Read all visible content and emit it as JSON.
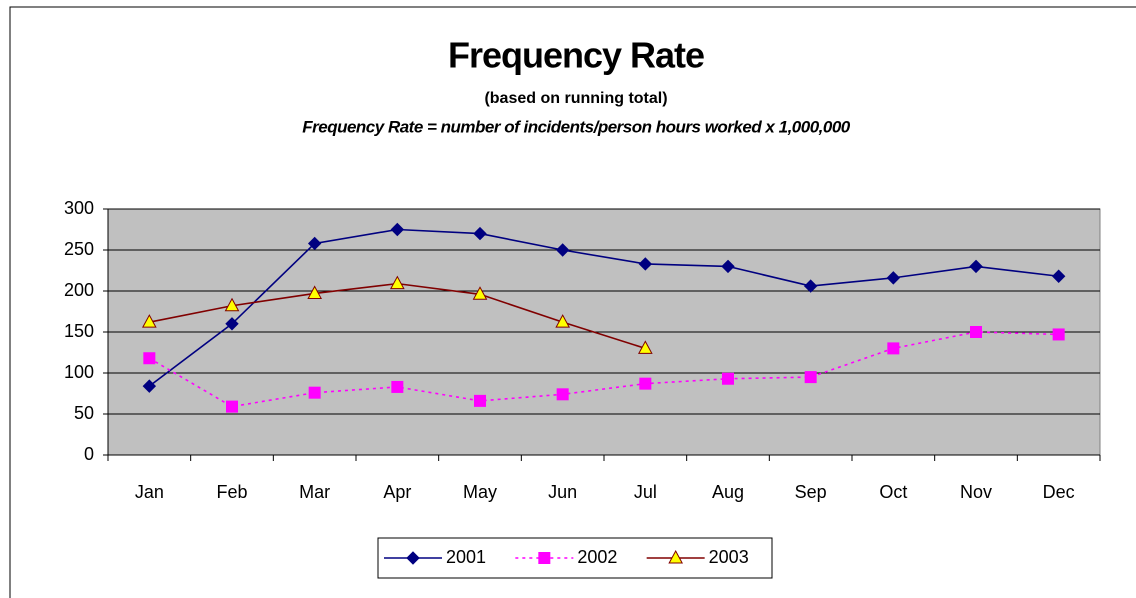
{
  "chart_data": {
    "type": "line",
    "title": "Frequency Rate",
    "subtitle": "(based on running total)",
    "annotation": "Frequency Rate = number of incidents/person hours worked x 1,000,000",
    "categories": [
      "Jan",
      "Feb",
      "Mar",
      "Apr",
      "May",
      "Jun",
      "Jul",
      "Aug",
      "Sep",
      "Oct",
      "Nov",
      "Dec"
    ],
    "series": [
      {
        "name": "2001",
        "color": "#000080",
        "marker": "diamond",
        "marker_fill": "#000080",
        "dashed": false,
        "values": [
          84,
          160,
          258,
          275,
          270,
          250,
          233,
          230,
          206,
          216,
          230,
          218
        ]
      },
      {
        "name": "2002",
        "color": "#ff00ff",
        "marker": "square",
        "marker_fill": "#ff00ff",
        "dashed": true,
        "values": [
          118,
          59,
          76,
          83,
          66,
          74,
          87,
          93,
          95,
          130,
          150,
          147
        ]
      },
      {
        "name": "2003",
        "color": "#800000",
        "marker": "triangle",
        "marker_fill": "#ffff00",
        "dashed": false,
        "values": [
          162,
          182,
          197,
          209,
          196,
          162,
          130,
          null,
          null,
          null,
          null,
          null
        ]
      }
    ],
    "ylim": [
      0,
      300
    ],
    "yticks": [
      0,
      50,
      100,
      150,
      200,
      250,
      300
    ],
    "grid": true,
    "plot_background": "#c0c0c0",
    "legend": "bottom"
  }
}
